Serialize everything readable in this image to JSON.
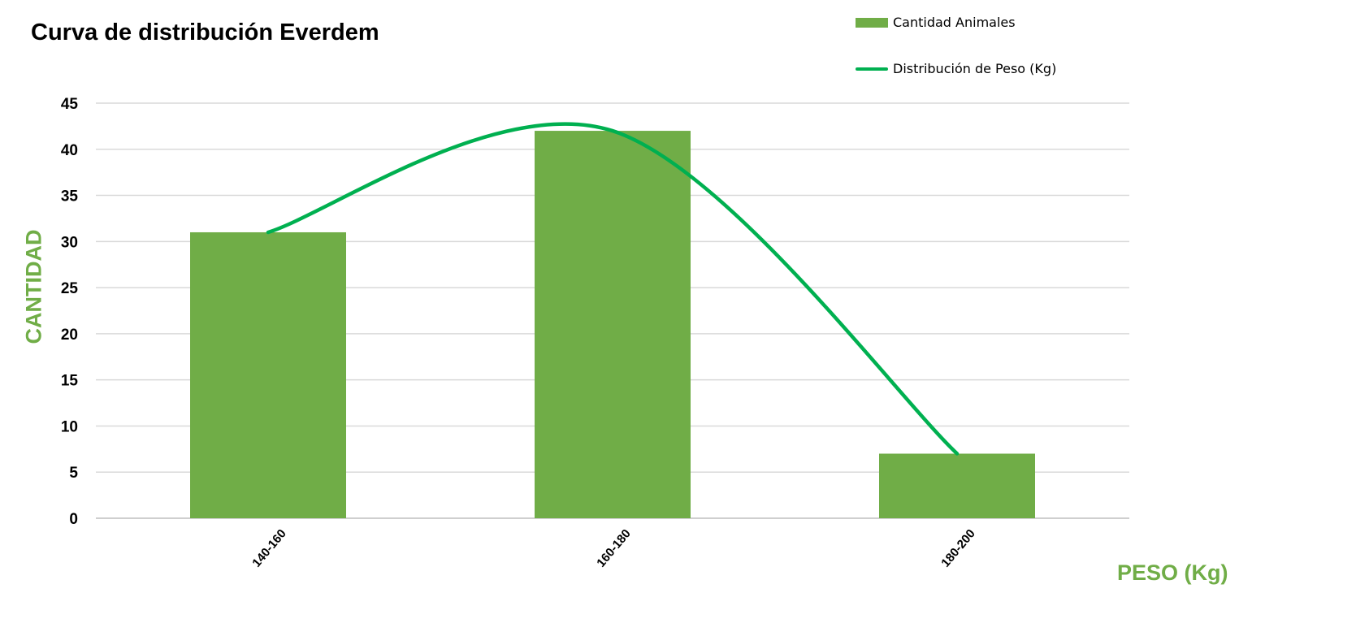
{
  "chart_data": {
    "type": "bar",
    "title": "Curva de distribución Everdem",
    "xlabel": "PESO (Kg)",
    "ylabel": "CANTIDAD",
    "categories": [
      "140-160",
      "160-180",
      "180-200"
    ],
    "series": [
      {
        "name": "Cantidad Animales",
        "type": "bar",
        "values": [
          31,
          42,
          7
        ],
        "color": "#70AD47"
      },
      {
        "name": "Distribución de Peso (Kg)",
        "type": "line",
        "smooth": true,
        "values": [
          31,
          42,
          7
        ],
        "color": "#00B050"
      }
    ],
    "ylim": [
      0,
      45
    ],
    "yticks": [
      0,
      5,
      10,
      15,
      20,
      25,
      30,
      35,
      40,
      45
    ],
    "grid": true,
    "legend_position": "top-right",
    "axis_title_color": "#70AD47"
  }
}
